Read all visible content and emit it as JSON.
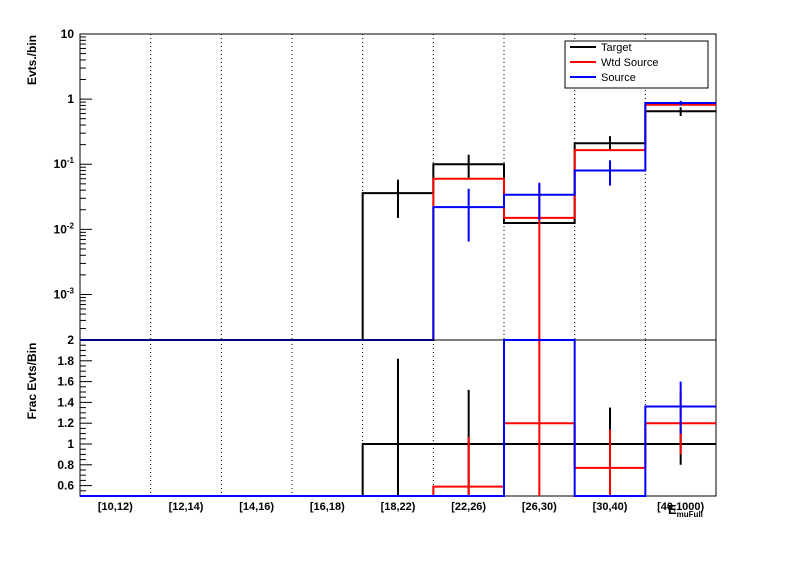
{
  "chart_data": [
    {
      "type": "line",
      "panel": "top",
      "ylabel": "Evts./bin",
      "yscale": "log",
      "ylim": [
        0.0002,
        10
      ],
      "y_tick_labels": [
        "10",
        "1",
        "10^-1",
        "10^-2",
        "10^-3"
      ],
      "categories": [
        "[10,12)",
        "[12,14)",
        "[14,16)",
        "[16,18)",
        "[18,22)",
        "[22,26)",
        "[26,30)",
        "[30,40)",
        "[40,1000)"
      ],
      "legend_position": "top-right",
      "series": [
        {
          "name": "Target",
          "color": "#000000",
          "values": [
            0,
            0,
            0,
            0,
            0.036,
            0.1,
            0.0125,
            0.21,
            0.65
          ],
          "err_low": [
            null,
            null,
            null,
            null,
            0.015,
            0.058,
            null,
            0.16,
            0.55
          ],
          "err_high": [
            null,
            null,
            null,
            null,
            0.058,
            0.14,
            null,
            0.27,
            0.75
          ]
        },
        {
          "name": "Wtd Source",
          "color": "#ff0000",
          "values": [
            0,
            0,
            0,
            0,
            0,
            0.06,
            0.015,
            0.165,
            0.82
          ],
          "err_low": [
            null,
            null,
            null,
            null,
            null,
            null,
            0.0002,
            null,
            null
          ],
          "err_high": [
            null,
            null,
            null,
            null,
            null,
            null,
            0.05,
            null,
            null
          ]
        },
        {
          "name": "Source",
          "color": "#0000ff",
          "values": [
            0,
            0,
            0,
            0,
            0,
            0.022,
            0.034,
            0.08,
            0.87
          ],
          "err_low": [
            null,
            null,
            null,
            null,
            null,
            0.0065,
            0.014,
            0.047,
            0.8
          ],
          "err_high": [
            null,
            null,
            null,
            null,
            null,
            0.042,
            0.052,
            0.115,
            0.94
          ]
        }
      ]
    },
    {
      "type": "line",
      "panel": "bottom",
      "ylabel": "Frac Evts/Bin",
      "ylim": [
        0.5,
        2
      ],
      "y_tick_labels": [
        "0.6",
        "0.8",
        "1",
        "1.2",
        "1.4",
        "1.6",
        "1.8",
        "2"
      ],
      "y_ticks": [
        0.6,
        0.8,
        1,
        1.2,
        1.4,
        1.6,
        1.8,
        2
      ],
      "categories": [
        "[10,12)",
        "[12,14)",
        "[14,16)",
        "[16,18)",
        "[18,22)",
        "[22,26)",
        "[26,30)",
        "[30,40)",
        "[40,1000)"
      ],
      "xlabel": "E_{muFull}",
      "series": [
        {
          "name": "Target",
          "color": "#000000",
          "values": [
            0.5,
            0.5,
            0.5,
            0.5,
            1.0,
            1.0,
            1.0,
            1.0,
            1.0
          ],
          "err_low": [
            null,
            null,
            null,
            null,
            0.5,
            0.5,
            null,
            0.5,
            0.8
          ],
          "err_high": [
            null,
            null,
            null,
            null,
            1.82,
            1.52,
            null,
            1.35,
            1.2
          ]
        },
        {
          "name": "Wtd Source",
          "color": "#ff0000",
          "values": [
            0.5,
            0.5,
            0.5,
            0.5,
            0.5,
            0.59,
            1.2,
            0.77,
            1.2
          ],
          "err_low": [
            null,
            null,
            null,
            null,
            null,
            0.5,
            0.5,
            0.5,
            0.9
          ],
          "err_high": [
            null,
            null,
            null,
            null,
            null,
            1.07,
            2.0,
            1.14,
            1.5
          ]
        },
        {
          "name": "Source",
          "color": "#0000ff",
          "values": [
            0.5,
            0.5,
            0.5,
            0.5,
            0.5,
            0.5,
            2.0,
            0.5,
            1.36
          ],
          "err_low": [
            null,
            null,
            null,
            null,
            null,
            null,
            null,
            null,
            1.1
          ],
          "err_high": [
            null,
            null,
            null,
            null,
            null,
            null,
            null,
            null,
            1.6
          ]
        }
      ]
    }
  ],
  "legend": {
    "items": [
      {
        "label": "Target",
        "color": "#000000"
      },
      {
        "label": "Wtd Source",
        "color": "#ff0000"
      },
      {
        "label": "Source",
        "color": "#0000ff"
      }
    ]
  },
  "axes": {
    "top_ylabel": "Evts./bin",
    "bottom_ylabel": "Frac Evts/Bin",
    "xlabel_main": "E",
    "xlabel_sub": "muFull"
  }
}
